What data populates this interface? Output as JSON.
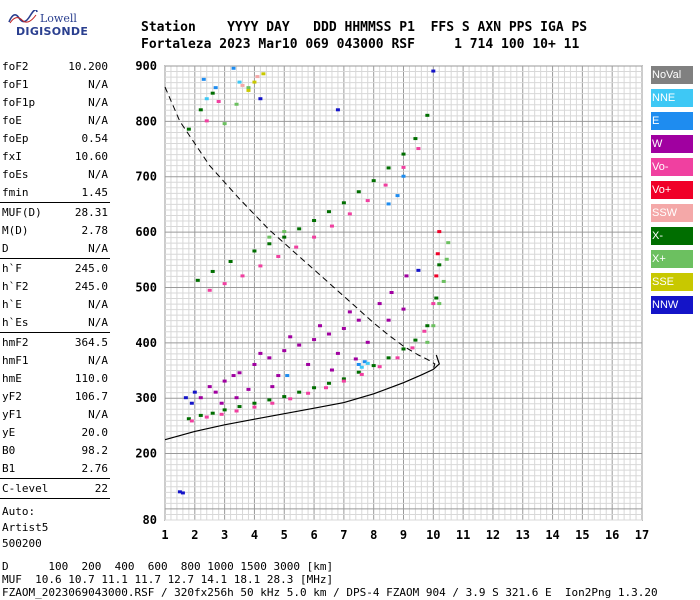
{
  "logo": {
    "line1": "Lowell",
    "line2": "DIGISONDE"
  },
  "header": {
    "line1": "Station    YYYY DAY   DDD HHMMSS P1  FFS S AXN PPS IGA PS",
    "line2": "Fortaleza 2023 Mar10 069 043000 RSF     1 714 100 10+ 11"
  },
  "params": {
    "g1": [
      [
        "foF2",
        "10.200"
      ],
      [
        "foF1",
        "N/A"
      ],
      [
        "foF1p",
        "N/A"
      ],
      [
        "foE",
        "N/A"
      ],
      [
        "foEp",
        "0.54"
      ],
      [
        "fxI",
        "10.60"
      ],
      [
        "foEs",
        "N/A"
      ],
      [
        "fmin",
        "1.45"
      ]
    ],
    "g2": [
      [
        "MUF(D)",
        "28.31"
      ],
      [
        "M(D)",
        "2.78"
      ],
      [
        "D",
        "N/A"
      ]
    ],
    "g3": [
      [
        "h`F",
        "245.0"
      ],
      [
        "h`F2",
        "245.0"
      ],
      [
        "h`E",
        "N/A"
      ],
      [
        "h`Es",
        "N/A"
      ]
    ],
    "g4": [
      [
        "hmF2",
        "364.5"
      ],
      [
        "hmF1",
        "N/A"
      ],
      [
        "hmE",
        "110.0"
      ],
      [
        "yF2",
        "106.7"
      ],
      [
        "yF1",
        "N/A"
      ],
      [
        "yE",
        "20.0"
      ],
      [
        "B0",
        "98.2"
      ],
      [
        "B1",
        "2.76"
      ]
    ],
    "g5": [
      [
        "C-level",
        "22"
      ]
    ],
    "auto": [
      "Auto:",
      "Artist5",
      "500200"
    ]
  },
  "legend": [
    {
      "label": "NoVal",
      "color": "#808080"
    },
    {
      "label": "NNE",
      "color": "#3ec8f5"
    },
    {
      "label": "E",
      "color": "#1e8cf0"
    },
    {
      "label": "W",
      "color": "#a000a0"
    },
    {
      "label": "Vo-",
      "color": "#f040a0"
    },
    {
      "label": "Vo+",
      "color": "#f00028"
    },
    {
      "label": "SSW",
      "color": "#f4a8a8"
    },
    {
      "label": "X-",
      "color": "#006e00"
    },
    {
      "label": "X+",
      "color": "#6cc060"
    },
    {
      "label": "SSE",
      "color": "#c8c800"
    },
    {
      "label": "NNW",
      "color": "#1414c8"
    }
  ],
  "footer": {
    "line1": "D      100  200  400  600  800 1000 1500 3000 [km]",
    "line2": "MUF  10.6 10.7 11.1 11.7 12.7 14.1 18.1 28.3 [MHz]",
    "line3": "FZAOM_2023069043000.RSF / 320fx256h 50 kHz 5.0 km / DPS-4 FZAOM 904 / 3.9 S 321.6 E  Ion2Png 1.3.20"
  },
  "chart_data": {
    "type": "scatter",
    "xlim": [
      1,
      17
    ],
    "ylim": [
      80,
      900
    ],
    "x_ticks": [
      1,
      2,
      3,
      4,
      5,
      6,
      7,
      8,
      9,
      10,
      11,
      12,
      13,
      14,
      15,
      16,
      17
    ],
    "y_ticks": [
      80,
      200,
      300,
      400,
      500,
      600,
      700,
      800,
      900
    ],
    "grid": true,
    "series": [
      {
        "name": "X-",
        "color": "#006e00",
        "points": [
          [
            1.8,
            262
          ],
          [
            2.2,
            268
          ],
          [
            2.6,
            272
          ],
          [
            3,
            278
          ],
          [
            3.5,
            284
          ],
          [
            4,
            290
          ],
          [
            4.5,
            296
          ],
          [
            5,
            302
          ],
          [
            5.5,
            310
          ],
          [
            6,
            318
          ],
          [
            6.5,
            326
          ],
          [
            7,
            334
          ],
          [
            7.5,
            346
          ],
          [
            8,
            358
          ],
          [
            8.5,
            372
          ],
          [
            9,
            388
          ],
          [
            9.4,
            404
          ],
          [
            9.8,
            430
          ],
          [
            10.1,
            480
          ],
          [
            10.2,
            540
          ],
          [
            2.1,
            512
          ],
          [
            2.6,
            528
          ],
          [
            3.2,
            546
          ],
          [
            4,
            565
          ],
          [
            4.5,
            578
          ],
          [
            5,
            590
          ],
          [
            5.5,
            605
          ],
          [
            6,
            620
          ],
          [
            6.5,
            636
          ],
          [
            7,
            652
          ],
          [
            7.5,
            672
          ],
          [
            8,
            692
          ],
          [
            8.5,
            715
          ],
          [
            9,
            740
          ],
          [
            9.4,
            768
          ],
          [
            9.8,
            810
          ],
          [
            1.8,
            785
          ],
          [
            2.2,
            820
          ],
          [
            2.6,
            850
          ]
        ]
      },
      {
        "name": "Vo-",
        "color": "#f040a0",
        "points": [
          [
            1.9,
            258
          ],
          [
            2.4,
            265
          ],
          [
            2.9,
            270
          ],
          [
            3.4,
            276
          ],
          [
            4,
            283
          ],
          [
            4.6,
            290
          ],
          [
            5.2,
            298
          ],
          [
            5.8,
            308
          ],
          [
            6.4,
            318
          ],
          [
            7,
            330
          ],
          [
            7.6,
            342
          ],
          [
            8.2,
            356
          ],
          [
            8.8,
            372
          ],
          [
            9.3,
            390
          ],
          [
            9.7,
            420
          ],
          [
            10,
            470
          ],
          [
            2.5,
            494
          ],
          [
            3,
            506
          ],
          [
            3.6,
            520
          ],
          [
            4.2,
            538
          ],
          [
            4.8,
            555
          ],
          [
            5.4,
            572
          ],
          [
            6,
            590
          ],
          [
            6.6,
            610
          ],
          [
            7.2,
            632
          ],
          [
            7.8,
            656
          ],
          [
            8.4,
            684
          ],
          [
            9,
            716
          ],
          [
            9.5,
            750
          ],
          [
            2.4,
            800
          ],
          [
            2.8,
            835
          ]
        ]
      },
      {
        "name": "Vo+",
        "color": "#f00028",
        "points": [
          [
            10.1,
            520
          ],
          [
            10.15,
            560
          ],
          [
            10.2,
            600
          ]
        ]
      },
      {
        "name": "X+",
        "color": "#6cc060",
        "points": [
          [
            9.8,
            400
          ],
          [
            10,
            430
          ],
          [
            10.2,
            470
          ],
          [
            10.35,
            510
          ],
          [
            10.45,
            550
          ],
          [
            10.5,
            580
          ],
          [
            4.5,
            590
          ],
          [
            5,
            600
          ],
          [
            3,
            795
          ],
          [
            3.4,
            830
          ],
          [
            3.8,
            860
          ]
        ]
      },
      {
        "name": "W",
        "color": "#a000a0",
        "points": [
          [
            2.2,
            300
          ],
          [
            2.5,
            320
          ],
          [
            3,
            330
          ],
          [
            3.5,
            345
          ],
          [
            4,
            360
          ],
          [
            4.5,
            372
          ],
          [
            5,
            385
          ],
          [
            5.5,
            395
          ],
          [
            6,
            405
          ],
          [
            6.5,
            415
          ],
          [
            7,
            425
          ],
          [
            7.5,
            440
          ],
          [
            2.7,
            310
          ],
          [
            3.3,
            340
          ],
          [
            4.2,
            380
          ],
          [
            5.2,
            410
          ],
          [
            6.2,
            430
          ],
          [
            7.2,
            455
          ],
          [
            8.2,
            470
          ],
          [
            8.6,
            490
          ],
          [
            9.1,
            520
          ],
          [
            2.9,
            290
          ],
          [
            3.8,
            315
          ],
          [
            4.8,
            340
          ],
          [
            5.8,
            360
          ],
          [
            6.8,
            380
          ],
          [
            7.8,
            400
          ],
          [
            8.5,
            440
          ],
          [
            9,
            460
          ],
          [
            3.4,
            300
          ],
          [
            4.6,
            320
          ],
          [
            6.6,
            350
          ],
          [
            7.4,
            370
          ]
        ]
      },
      {
        "name": "E",
        "color": "#1e8cf0",
        "points": [
          [
            2.3,
            875
          ],
          [
            2.7,
            860
          ],
          [
            3.3,
            895
          ],
          [
            8.5,
            650
          ],
          [
            8.8,
            665
          ],
          [
            9,
            700
          ],
          [
            5.1,
            340
          ],
          [
            7.5,
            360
          ],
          [
            7.7,
            365
          ]
        ]
      },
      {
        "name": "NNE",
        "color": "#3ec8f5",
        "points": [
          [
            2.4,
            840
          ],
          [
            3.5,
            870
          ],
          [
            7.6,
            355
          ],
          [
            7.8,
            362
          ]
        ]
      },
      {
        "name": "NNW",
        "color": "#1414c8",
        "points": [
          [
            1.7,
            300
          ],
          [
            1.9,
            290
          ],
          [
            2,
            310
          ],
          [
            1.5,
            130
          ],
          [
            1.6,
            128
          ],
          [
            10,
            890
          ],
          [
            4.2,
            840
          ],
          [
            9.5,
            530
          ],
          [
            6.8,
            820
          ]
        ]
      },
      {
        "name": "SSE",
        "color": "#c8c800",
        "points": [
          [
            3.8,
            855
          ],
          [
            4,
            870
          ],
          [
            4.3,
            885
          ]
        ]
      },
      {
        "name": "SSW",
        "color": "#f4a8a8",
        "points": [
          [
            3.6,
            864
          ],
          [
            4.1,
            880
          ]
        ]
      }
    ],
    "profile_solid": [
      [
        1,
        225
      ],
      [
        2,
        240
      ],
      [
        3,
        252
      ],
      [
        4,
        262
      ],
      [
        5,
        272
      ],
      [
        6,
        282
      ],
      [
        7,
        292
      ],
      [
        8,
        308
      ],
      [
        9,
        328
      ],
      [
        9.6,
        342
      ],
      [
        10,
        352
      ],
      [
        10.2,
        362
      ],
      [
        10.1,
        378
      ]
    ],
    "profile_dashed": [
      [
        1,
        862
      ],
      [
        1.5,
        800
      ],
      [
        2,
        760
      ],
      [
        2.5,
        720
      ],
      [
        3,
        690
      ],
      [
        3.5,
        660
      ],
      [
        4,
        632
      ],
      [
        4.5,
        604
      ],
      [
        5,
        580
      ],
      [
        5.5,
        556
      ],
      [
        6,
        532
      ],
      [
        6.5,
        508
      ],
      [
        7,
        484
      ],
      [
        7.5,
        460
      ],
      [
        8,
        436
      ],
      [
        8.5,
        414
      ],
      [
        9,
        394
      ],
      [
        9.5,
        378
      ],
      [
        9.8,
        370
      ],
      [
        10.05,
        362
      ],
      [
        10,
        352
      ]
    ]
  }
}
